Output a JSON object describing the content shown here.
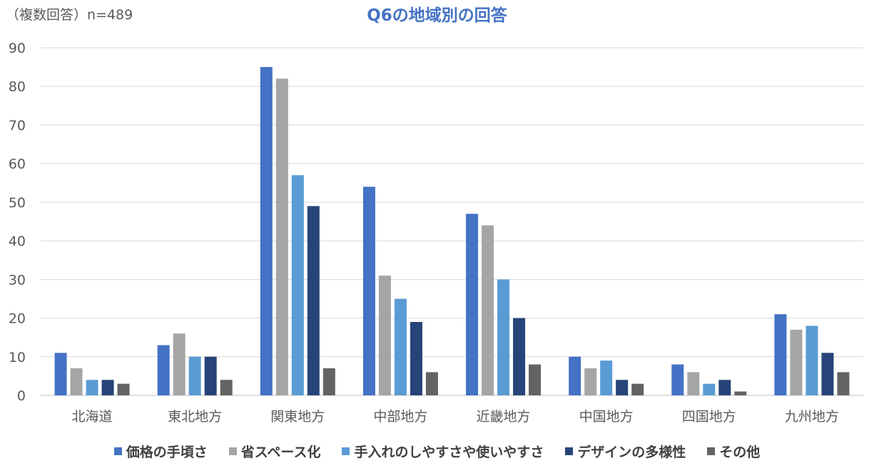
{
  "note": "（複数回答）n=489",
  "chart_data": {
    "type": "bar",
    "title": "Q6の地域別の回答",
    "xlabel": "",
    "ylabel": "",
    "ylim": [
      0,
      90
    ],
    "yticks": [
      0,
      10,
      20,
      30,
      40,
      50,
      60,
      70,
      80,
      90
    ],
    "grid": true,
    "legend_position": "bottom",
    "categories": [
      "北海道",
      "東北地方",
      "関東地方",
      "中部地方",
      "近畿地方",
      "中国地方",
      "四国地方",
      "九州地方"
    ],
    "series": [
      {
        "name": "価格の手頃さ",
        "color": "#4472C4",
        "values": [
          11,
          13,
          85,
          54,
          47,
          10,
          8,
          21
        ]
      },
      {
        "name": "省スペース化",
        "color": "#A5A5A5",
        "values": [
          7,
          16,
          82,
          31,
          44,
          7,
          6,
          17
        ]
      },
      {
        "name": "手入れのしやすさや使いやすさ",
        "color": "#5B9BD5",
        "values": [
          4,
          10,
          57,
          25,
          30,
          9,
          3,
          18
        ]
      },
      {
        "name": "デザインの多様性",
        "color": "#264478",
        "values": [
          4,
          10,
          49,
          19,
          20,
          4,
          4,
          11
        ]
      },
      {
        "name": "その他",
        "color": "#636363",
        "values": [
          3,
          4,
          7,
          6,
          8,
          3,
          1,
          6
        ]
      }
    ]
  }
}
